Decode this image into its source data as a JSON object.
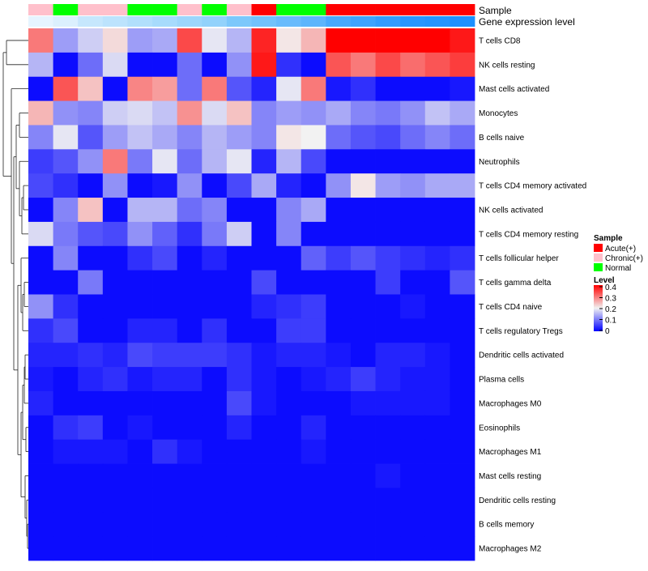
{
  "chart_data": {
    "type": "heatmap",
    "title": "",
    "annotation_labels": {
      "sample": "Sample",
      "gene_expression": "Gene expression level"
    },
    "rows": [
      "T cells CD8",
      "NK cells resting",
      "Mast cells activated",
      "Monocytes",
      "B cells naive",
      "Neutrophils",
      "T cells CD4 memory activated",
      "NK cells activated",
      "T cells CD4 memory resting",
      "T cells follicular helper",
      "T cells gamma delta",
      "T cells CD4 naive",
      "T cells regulatory  Tregs",
      "Dendritic cells activated",
      "Plasma cells",
      "Macrophages M0",
      "Eosinophils",
      "Macrophages M1",
      "Mast cells resting",
      "Dendritic cells resting",
      "B cells memory",
      "Macrophages M2"
    ],
    "sample_groups": [
      "Chronic(+)",
      "Normal",
      "Chronic(+)",
      "Chronic(+)",
      "Normal",
      "Normal",
      "Chronic(+)",
      "Normal",
      "Chronic(+)",
      "Acute(+)",
      "Normal",
      "Normal",
      "Acute(+)",
      "Acute(+)",
      "Acute(+)",
      "Acute(+)",
      "Acute(+)",
      "Acute(+)"
    ],
    "gene_expression": [
      0.05,
      0.1,
      0.2,
      0.25,
      0.3,
      0.35,
      0.4,
      0.45,
      0.55,
      0.6,
      0.65,
      0.7,
      0.8,
      0.85,
      0.9,
      0.95,
      0.97,
      1.0
    ],
    "values": [
      [
        0.3,
        0.13,
        0.17,
        0.22,
        0.13,
        0.14,
        0.34,
        0.19,
        0.15,
        0.37,
        0.21,
        0.25,
        0.4,
        0.4,
        0.4,
        0.4,
        0.4,
        0.38
      ],
      [
        0.15,
        0.01,
        0.09,
        0.18,
        0.01,
        0.01,
        0.09,
        0.01,
        0.12,
        0.38,
        0.04,
        0.01,
        0.33,
        0.3,
        0.34,
        0.31,
        0.33,
        0.35
      ],
      [
        0.01,
        0.33,
        0.24,
        0.01,
        0.29,
        0.27,
        0.09,
        0.3,
        0.07,
        0.03,
        0.19,
        0.3,
        0.02,
        0.04,
        0.01,
        0.01,
        0.01,
        0.02
      ],
      [
        0.25,
        0.12,
        0.11,
        0.17,
        0.18,
        0.16,
        0.28,
        0.18,
        0.24,
        0.11,
        0.13,
        0.12,
        0.14,
        0.11,
        0.1,
        0.12,
        0.16,
        0.14
      ],
      [
        0.11,
        0.19,
        0.07,
        0.13,
        0.16,
        0.14,
        0.11,
        0.15,
        0.13,
        0.11,
        0.21,
        0.2,
        0.09,
        0.07,
        0.06,
        0.09,
        0.11,
        0.09
      ],
      [
        0.05,
        0.07,
        0.12,
        0.3,
        0.1,
        0.19,
        0.09,
        0.15,
        0.19,
        0.03,
        0.15,
        0.06,
        0.01,
        0.01,
        0.01,
        0.01,
        0.01,
        0.01
      ],
      [
        0.06,
        0.04,
        0.01,
        0.12,
        0.01,
        0.02,
        0.12,
        0.01,
        0.06,
        0.14,
        0.03,
        0.01,
        0.12,
        0.21,
        0.13,
        0.12,
        0.14,
        0.14
      ],
      [
        0.01,
        0.11,
        0.24,
        0.01,
        0.15,
        0.15,
        0.09,
        0.11,
        0.01,
        0.01,
        0.11,
        0.14,
        0.01,
        0.01,
        0.01,
        0.01,
        0.01,
        0.01
      ],
      [
        0.18,
        0.1,
        0.07,
        0.06,
        0.12,
        0.08,
        0.04,
        0.1,
        0.17,
        0.01,
        0.11,
        0.01,
        0.01,
        0.01,
        0.01,
        0.01,
        0.01,
        0.01
      ],
      [
        0.01,
        0.11,
        0.01,
        0.01,
        0.04,
        0.06,
        0.01,
        0.03,
        0.01,
        0.01,
        0.01,
        0.08,
        0.05,
        0.07,
        0.05,
        0.04,
        0.03,
        0.04
      ],
      [
        0.01,
        0.01,
        0.1,
        0.01,
        0.01,
        0.01,
        0.01,
        0.01,
        0.01,
        0.06,
        0.01,
        0.01,
        0.01,
        0.01,
        0.05,
        0.01,
        0.01,
        0.07
      ],
      [
        0.12,
        0.04,
        0.01,
        0.01,
        0.01,
        0.01,
        0.01,
        0.01,
        0.01,
        0.03,
        0.04,
        0.05,
        0.01,
        0.01,
        0.01,
        0.02,
        0.01,
        0.01
      ],
      [
        0.04,
        0.06,
        0.01,
        0.01,
        0.03,
        0.03,
        0.01,
        0.04,
        0.01,
        0.01,
        0.05,
        0.05,
        0.01,
        0.01,
        0.01,
        0.01,
        0.01,
        0.01
      ],
      [
        0.03,
        0.03,
        0.04,
        0.03,
        0.06,
        0.05,
        0.05,
        0.05,
        0.04,
        0.02,
        0.03,
        0.03,
        0.02,
        0.01,
        0.03,
        0.03,
        0.02,
        0.01
      ],
      [
        0.02,
        0.01,
        0.03,
        0.04,
        0.02,
        0.03,
        0.03,
        0.01,
        0.04,
        0.02,
        0.01,
        0.02,
        0.03,
        0.05,
        0.03,
        0.02,
        0.02,
        0.01
      ],
      [
        0.03,
        0.01,
        0.01,
        0.01,
        0.01,
        0.01,
        0.01,
        0.01,
        0.06,
        0.02,
        0.01,
        0.01,
        0.01,
        0.02,
        0.02,
        0.02,
        0.02,
        0.01
      ],
      [
        0.01,
        0.04,
        0.05,
        0.01,
        0.02,
        0.01,
        0.01,
        0.01,
        0.03,
        0.01,
        0.01,
        0.03,
        0.01,
        0.01,
        0.01,
        0.01,
        0.01,
        0.01
      ],
      [
        0.01,
        0.02,
        0.02,
        0.02,
        0.01,
        0.04,
        0.02,
        0.01,
        0.01,
        0.01,
        0.01,
        0.02,
        0.01,
        0.01,
        0.01,
        0.01,
        0.01,
        0.01
      ],
      [
        0.01,
        0.01,
        0.01,
        0.01,
        0.01,
        0.01,
        0.01,
        0.01,
        0.01,
        0.01,
        0.01,
        0.01,
        0.01,
        0.01,
        0.02,
        0.01,
        0.01,
        0.01
      ],
      [
        0.01,
        0.01,
        0.01,
        0.01,
        0.01,
        0.01,
        0.01,
        0.01,
        0.01,
        0.01,
        0.01,
        0.01,
        0.01,
        0.01,
        0.01,
        0.01,
        0.01,
        0.01
      ],
      [
        0.01,
        0.01,
        0.01,
        0.01,
        0.01,
        0.01,
        0.01,
        0.01,
        0.01,
        0.01,
        0.01,
        0.01,
        0.01,
        0.01,
        0.01,
        0.01,
        0.01,
        0.01
      ],
      [
        0.01,
        0.01,
        0.01,
        0.01,
        0.01,
        0.01,
        0.01,
        0.01,
        0.01,
        0.01,
        0.01,
        0.01,
        0.01,
        0.01,
        0.01,
        0.01,
        0.01,
        0.01
      ]
    ],
    "color_scale": {
      "min": 0,
      "max": 0.4,
      "low_color": "#0000FF",
      "mid_color": "#FFFFFF",
      "high_color": "#FF0000",
      "ramp": [
        "#0000FF",
        "#8080FF",
        "#F2F2F2",
        "#FF8080",
        "#FF0000"
      ]
    },
    "legend": {
      "sample_title": "Sample",
      "sample_items": [
        {
          "label": "Acute(+)",
          "color": "#FF0000"
        },
        {
          "label": "Chronic(+)",
          "color": "#FFC0CB"
        },
        {
          "label": "Normal",
          "color": "#00FF00"
        }
      ],
      "level_title": "Level",
      "level_ticks": [
        "0.4",
        "0.3",
        "0.2",
        "0.1",
        "0"
      ],
      "placement": "right"
    },
    "gene_color_ramp": [
      "#F0F8FF",
      "#87CEFA",
      "#1E90FF"
    ],
    "dendrogram": "left"
  }
}
